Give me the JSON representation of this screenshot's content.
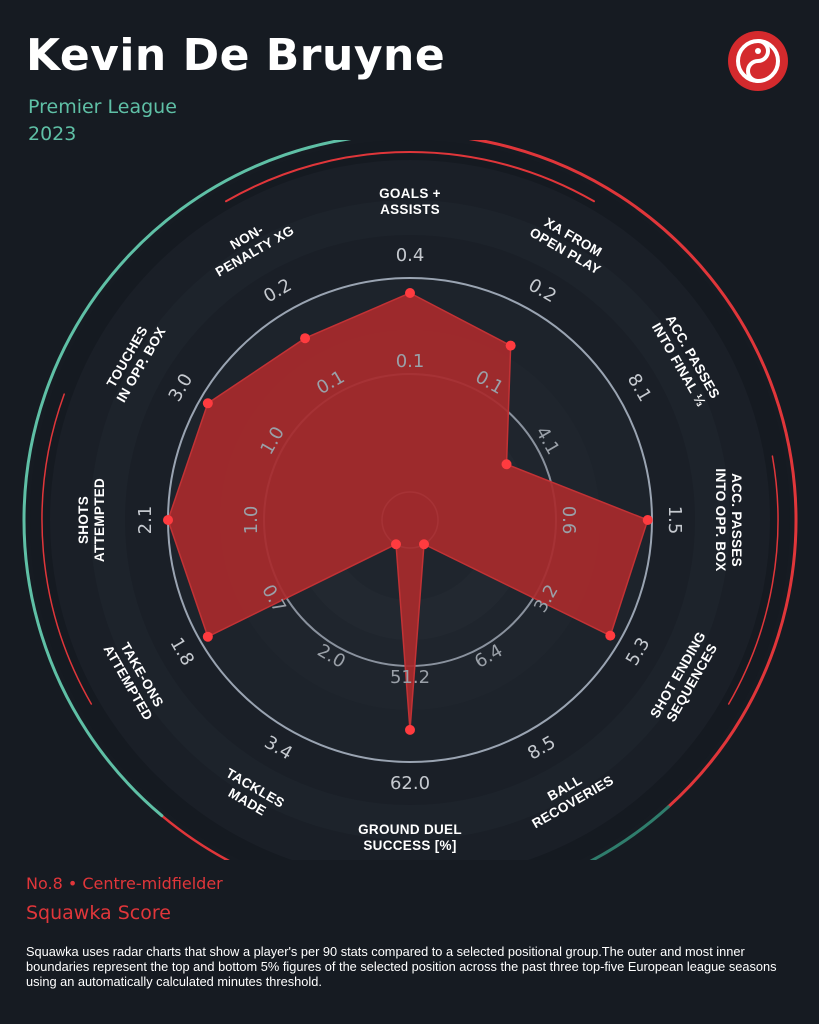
{
  "header": {
    "player_name": "Kevin De Bruyne",
    "league": "Premier League",
    "season": "2023"
  },
  "logo": {
    "icon": "squawka-logo-icon",
    "color": "#d42a2d"
  },
  "colors": {
    "background": "#161b22",
    "accent_green": "#5fc0a6",
    "accent_red": "#e0363a",
    "polygon_fill": "#a82a2c",
    "point": "#ff3b3f"
  },
  "chart_data": {
    "type": "radar",
    "title": "",
    "categories": [
      {
        "label": [
          "GOALS +",
          "ASSISTS"
        ],
        "outer": "0.4",
        "inner": "0.1",
        "level": 0.93
      },
      {
        "label": [
          "XA FROM",
          "OPEN PLAY"
        ],
        "outer": "0.2",
        "inner": "0.1",
        "level": 0.81
      },
      {
        "label": [
          "ACC. PASSES",
          "INTO FINAL ⅓"
        ],
        "outer": "8.1",
        "inner": "4.1",
        "level": 0.39
      },
      {
        "label": [
          "ACC. PASSES",
          "INTO OPP. BOX"
        ],
        "outer": "1.5",
        "inner": "0.6",
        "level": 0.98
      },
      {
        "label": [
          "SHOT ENDING",
          "SEQUENCES"
        ],
        "outer": "5.3",
        "inner": "3.2",
        "level": 0.95
      },
      {
        "label": [
          "BALL",
          "RECOVERIES"
        ],
        "outer": "8.5",
        "inner": "6.4",
        "level": 0.0
      },
      {
        "label": [
          "GROUND DUEL",
          "SUCCESS [%]"
        ],
        "outer": "62.0",
        "inner": "51.2",
        "level": 0.85
      },
      {
        "label": [
          "TACKLES",
          "MADE"
        ],
        "outer": "3.4",
        "inner": "2.0",
        "level": 0.0
      },
      {
        "label": [
          "TAKE-ONS",
          "ATTEMPTED"
        ],
        "outer": "1.8",
        "inner": "0.7",
        "level": 0.96
      },
      {
        "label": [
          "SHOTS",
          "ATTEMPTED"
        ],
        "outer": "2.1",
        "inner": "1.0",
        "level": 1.0
      },
      {
        "label": [
          "TOUCHES",
          "IN OPP. BOX"
        ],
        "outer": "3.0",
        "inner": "1.0",
        "level": 0.96
      },
      {
        "label": [
          "NON-",
          "PENALTY XG"
        ],
        "outer": "0.2",
        "inner": "0.1",
        "level": 0.85
      }
    ],
    "scale": {
      "min": 0,
      "max": 1
    },
    "legend": "none"
  },
  "footer": {
    "role": "No.8 • Centre-midfielder",
    "score_label": "Squawka Score",
    "note": "Squawka uses radar charts that show a player's per 90 stats compared to a selected positional group.The outer and most inner boundaries represent the top and bottom 5% figures of the selected position across the past three top-five European league seasons using an automatically calculated minutes threshold."
  }
}
